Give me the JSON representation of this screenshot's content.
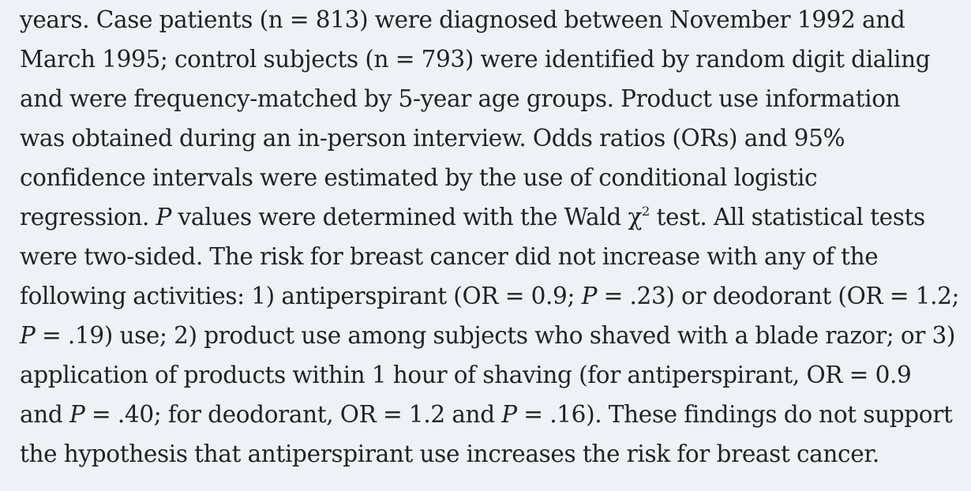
{
  "lines": [
    {
      "segments": [
        {
          "text": "years. Case patients (n = 813) were diagnosed between November 1992 and"
        }
      ]
    },
    {
      "segments": [
        {
          "text": "March 1995; control subjects (n = 793) were identified by random digit dialing"
        }
      ]
    },
    {
      "segments": [
        {
          "text": "and were frequency-matched by 5-year age groups. Product use information"
        }
      ]
    },
    {
      "segments": [
        {
          "text": "was obtained during an in-person interview. Odds ratios (ORs) and 95%"
        }
      ]
    },
    {
      "segments": [
        {
          "text": "confidence intervals were estimated by the use of conditional logistic"
        }
      ]
    },
    {
      "segments": [
        {
          "text": "regression. "
        },
        {
          "text": "P",
          "style": "italic"
        },
        {
          "text": " values were determined with the Wald χ"
        },
        {
          "text": "2",
          "style": "sup"
        },
        {
          "text": " test. All statistical tests"
        }
      ]
    },
    {
      "segments": [
        {
          "text": "were two-sided. The risk for breast cancer did not increase with any of the"
        }
      ]
    },
    {
      "segments": [
        {
          "text": "following activities: 1) antiperspirant (OR = 0.9; "
        },
        {
          "text": "P",
          "style": "italic"
        },
        {
          "text": " = .23) or deodorant (OR = 1.2;"
        }
      ]
    },
    {
      "segments": [
        {
          "text": "P",
          "style": "italic"
        },
        {
          "text": " = .19) use; 2) product use among subjects who shaved with a blade razor; or 3)"
        }
      ]
    },
    {
      "segments": [
        {
          "text": "application of products within 1 hour of shaving (for antiperspirant, OR = 0.9"
        }
      ]
    },
    {
      "segments": [
        {
          "text": "and "
        },
        {
          "text": "P",
          "style": "italic"
        },
        {
          "text": " = .40; for deodorant, OR = 1.2 and "
        },
        {
          "text": "P",
          "style": "italic"
        },
        {
          "text": " = .16). These findings do not support"
        }
      ]
    },
    {
      "segments": [
        {
          "text": "the hypothesis that antiperspirant use increases the risk for breast cancer."
        }
      ]
    }
  ]
}
